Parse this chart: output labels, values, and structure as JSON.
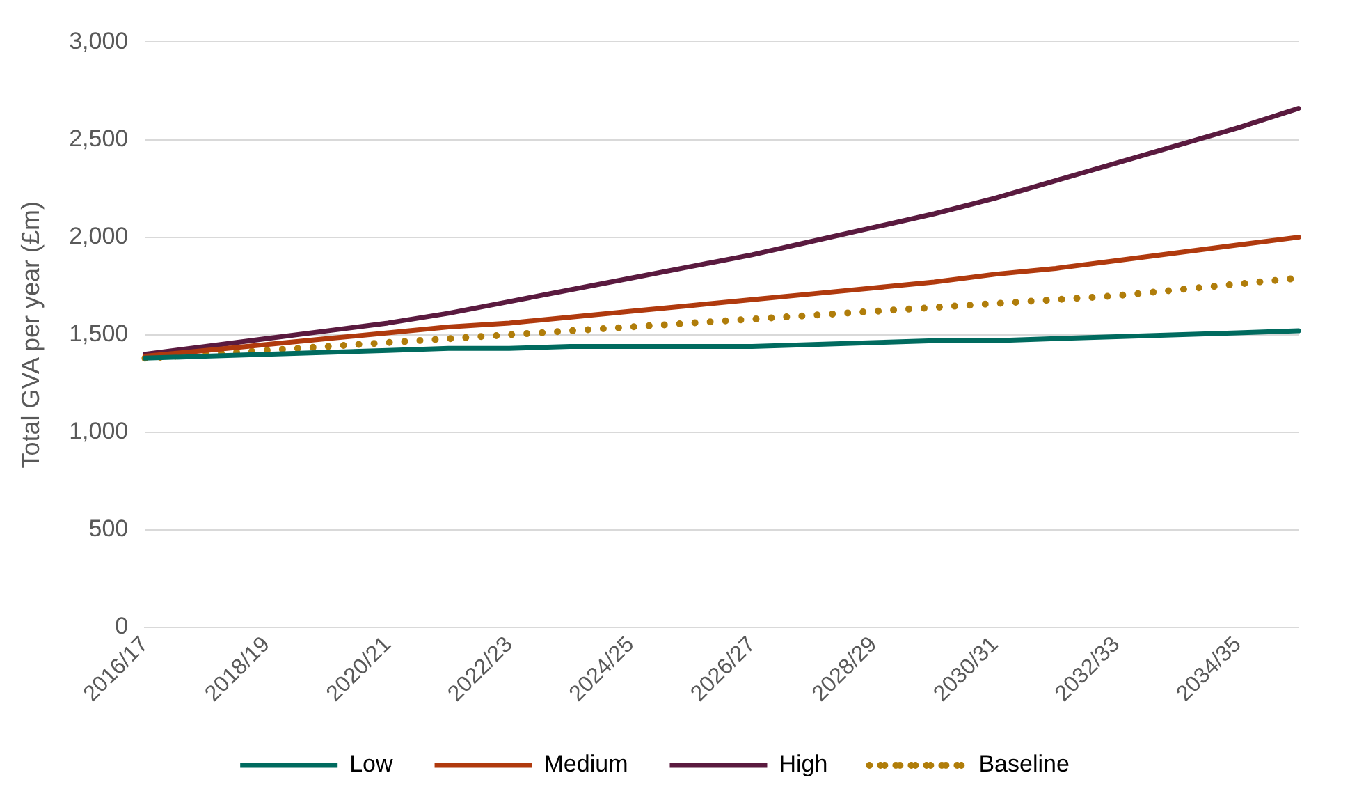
{
  "chart_data": {
    "type": "line",
    "ylabel": "Total GVA per year (£m)",
    "categories": [
      "2016/17",
      null,
      "2018/19",
      null,
      "2020/21",
      null,
      "2022/23",
      null,
      "2024/25",
      null,
      "2026/27",
      null,
      "2028/29",
      null,
      "2030/31",
      null,
      "2032/33",
      null,
      "2034/35",
      null
    ],
    "series": [
      {
        "name": "Low",
        "color": "#006b5f",
        "line_style": "solid",
        "values": [
          1380,
          1390,
          1400,
          1410,
          1420,
          1430,
          1430,
          1440,
          1440,
          1440,
          1440,
          1450,
          1460,
          1470,
          1470,
          1480,
          1490,
          1500,
          1510,
          1520
        ]
      },
      {
        "name": "Medium",
        "color": "#b03a0e",
        "line_style": "solid",
        "values": [
          1390,
          1420,
          1450,
          1480,
          1510,
          1540,
          1560,
          1590,
          1620,
          1650,
          1680,
          1710,
          1740,
          1770,
          1810,
          1840,
          1880,
          1920,
          1960,
          2000
        ]
      },
      {
        "name": "High",
        "color": "#5a1a3f",
        "line_style": "solid",
        "values": [
          1400,
          1440,
          1480,
          1520,
          1560,
          1610,
          1670,
          1730,
          1790,
          1850,
          1910,
          1980,
          2050,
          2120,
          2200,
          2290,
          2380,
          2470,
          2560,
          2660
        ]
      },
      {
        "name": "Baseline",
        "color": "#b07d0a",
        "line_style": "dotted",
        "values": [
          1380,
          1400,
          1420,
          1440,
          1460,
          1480,
          1500,
          1520,
          1540,
          1560,
          1580,
          1600,
          1620,
          1640,
          1660,
          1680,
          1700,
          1730,
          1760,
          1790
        ]
      }
    ],
    "ylim": [
      0,
      3000
    ],
    "yticks": [
      0,
      500,
      {
        "value": 1000,
        "label": "1,000"
      },
      {
        "value": 1500,
        "label": "1,500"
      },
      {
        "value": 2000,
        "label": "2,000"
      },
      {
        "value": 2500,
        "label": "2,500"
      },
      {
        "value": 3000,
        "label": "3,000"
      }
    ],
    "grid": "y",
    "legend": "bottom",
    "marker": "none"
  }
}
